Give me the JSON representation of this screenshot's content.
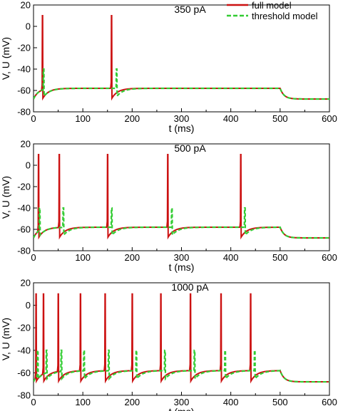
{
  "legend": {
    "entries": [
      {
        "label": "full model",
        "color": "#cc1111",
        "style": "solid"
      },
      {
        "label": "threshold model",
        "color": "#33cc33",
        "style": "dashed"
      }
    ]
  },
  "chart_data": [
    {
      "type": "line",
      "title": "350 pA",
      "xlabel": "t (ms)",
      "ylabel": "V, U (mV)",
      "xlim": [
        0,
        600
      ],
      "ylim": [
        -80,
        20
      ],
      "xticks": [
        "0",
        "100",
        "200",
        "300",
        "400",
        "500",
        "600"
      ],
      "yticks": [
        "20",
        "0",
        "-20",
        "-40",
        "-60",
        "-80"
      ],
      "full_spikes": [
        18,
        158
      ],
      "threshold_spikes": [
        20,
        168
      ],
      "rest": -68,
      "plateau": -58,
      "stim_end": 500,
      "series": [
        {
          "name": "full model",
          "color": "#cc1111"
        },
        {
          "name": "threshold model",
          "color": "#33cc33"
        }
      ]
    },
    {
      "type": "line",
      "title": "500 pA",
      "xlabel": "t (ms)",
      "ylabel": "V, U (mV)",
      "xlim": [
        0,
        600
      ],
      "ylim": [
        -80,
        20
      ],
      "xticks": [
        "0",
        "100",
        "200",
        "300",
        "400",
        "500",
        "600"
      ],
      "yticks": [
        "20",
        "0",
        "-20",
        "-40",
        "-60",
        "-80"
      ],
      "full_spikes": [
        10,
        52,
        150,
        272,
        420
      ],
      "threshold_spikes": [
        12,
        60,
        158,
        280,
        428
      ],
      "rest": -68,
      "plateau": -58,
      "stim_end": 500,
      "series": [
        {
          "name": "full model",
          "color": "#cc1111"
        },
        {
          "name": "threshold model",
          "color": "#33cc33"
        }
      ]
    },
    {
      "type": "line",
      "title": "1000 pA",
      "xlabel": "t (ms)",
      "ylabel": "V, U (mV)",
      "xlim": [
        0,
        600
      ],
      "ylim": [
        -80,
        20
      ],
      "xticks": [
        "0",
        "100",
        "200",
        "300",
        "400",
        "500",
        "600"
      ],
      "yticks": [
        "20",
        "0",
        "-20",
        "-40",
        "-60",
        "-80"
      ],
      "full_spikes": [
        5,
        20,
        50,
        95,
        145,
        200,
        258,
        318,
        380,
        440
      ],
      "threshold_spikes": [
        8,
        26,
        56,
        102,
        152,
        208,
        266,
        326,
        388,
        448
      ],
      "rest": -68,
      "plateau": -58,
      "stim_end": 500,
      "series": [
        {
          "name": "full model",
          "color": "#cc1111"
        },
        {
          "name": "threshold model",
          "color": "#33cc33"
        }
      ]
    }
  ]
}
